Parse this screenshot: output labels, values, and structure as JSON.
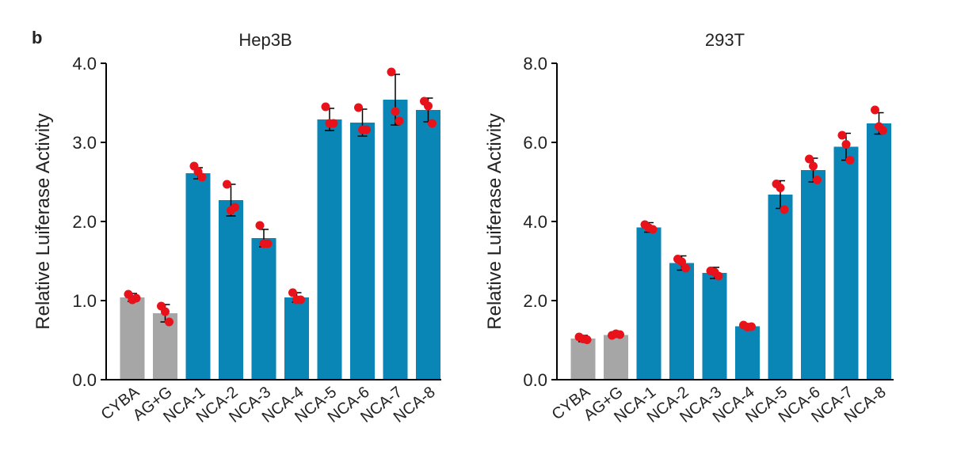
{
  "figure": {
    "panel_label": "b"
  },
  "colors": {
    "control": "#a6a6a6",
    "treatment": "#0a86b6",
    "dots": "#e8121b",
    "axis": "#000000",
    "errorbar": "#000000"
  },
  "chart_data": [
    {
      "type": "bar",
      "title": "Hep3B",
      "xlabel": "",
      "ylabel": "Relative Luiferase Activity",
      "ylim": [
        0,
        4
      ],
      "yticks": [
        0,
        1,
        2,
        3,
        4
      ],
      "ytick_labels": [
        "0.0",
        "1.0",
        "2.0",
        "3.0",
        "4.0"
      ],
      "grid": false,
      "categories": [
        "CYBA",
        "AG+G",
        "NCA-1",
        "NCA-2",
        "NCA-3",
        "NCA-4",
        "NCA-5",
        "NCA-6",
        "NCA-7",
        "NCA-8"
      ],
      "values": [
        1.04,
        0.84,
        2.61,
        2.27,
        1.79,
        1.04,
        3.29,
        3.25,
        3.54,
        3.41
      ],
      "errors": [
        0.05,
        0.11,
        0.07,
        0.2,
        0.11,
        0.06,
        0.14,
        0.17,
        0.32,
        0.15
      ],
      "points": [
        [
          1.08,
          1.03,
          1.01
        ],
        [
          0.93,
          0.73,
          0.86
        ],
        [
          2.7,
          2.56,
          2.63
        ],
        [
          2.47,
          2.18,
          2.14
        ],
        [
          1.95,
          1.72,
          1.72
        ],
        [
          1.1,
          1.01,
          1.01
        ],
        [
          3.45,
          3.24,
          3.24
        ],
        [
          3.44,
          3.16,
          3.16
        ],
        [
          3.89,
          3.27,
          3.39
        ],
        [
          3.52,
          3.24,
          3.46
        ]
      ],
      "bar_groups": [
        "control",
        "control",
        "treatment",
        "treatment",
        "treatment",
        "treatment",
        "treatment",
        "treatment",
        "treatment",
        "treatment"
      ]
    },
    {
      "type": "bar",
      "title": "293T",
      "xlabel": "",
      "ylabel": "Relative Luiferase Activity",
      "ylim": [
        0,
        8
      ],
      "yticks": [
        0,
        2,
        4,
        6,
        8
      ],
      "ytick_labels": [
        "0.0",
        "2.0",
        "4.0",
        "6.0",
        "8.0"
      ],
      "grid": false,
      "categories": [
        "CYBA",
        "AG+G",
        "NCA-1",
        "NCA-2",
        "NCA-3",
        "NCA-4",
        "NCA-5",
        "NCA-6",
        "NCA-7",
        "NCA-8"
      ],
      "values": [
        1.04,
        1.13,
        3.85,
        2.95,
        2.7,
        1.35,
        4.68,
        5.3,
        5.89,
        6.48
      ],
      "errors": [
        0.08,
        0.04,
        0.12,
        0.18,
        0.14,
        0.06,
        0.35,
        0.3,
        0.34,
        0.27
      ],
      "points": [
        [
          1.08,
          1.01,
          1.03
        ],
        [
          1.12,
          1.14,
          1.16
        ],
        [
          3.92,
          3.8,
          3.84
        ],
        [
          3.05,
          2.82,
          2.98
        ],
        [
          2.75,
          2.62,
          2.72
        ],
        [
          1.38,
          1.34,
          1.33
        ],
        [
          4.95,
          4.3,
          4.85
        ],
        [
          5.58,
          5.05,
          5.4
        ],
        [
          6.18,
          5.55,
          5.95
        ],
        [
          6.82,
          6.3,
          6.4
        ]
      ],
      "bar_groups": [
        "control",
        "control",
        "treatment",
        "treatment",
        "treatment",
        "treatment",
        "treatment",
        "treatment",
        "treatment",
        "treatment"
      ]
    }
  ]
}
